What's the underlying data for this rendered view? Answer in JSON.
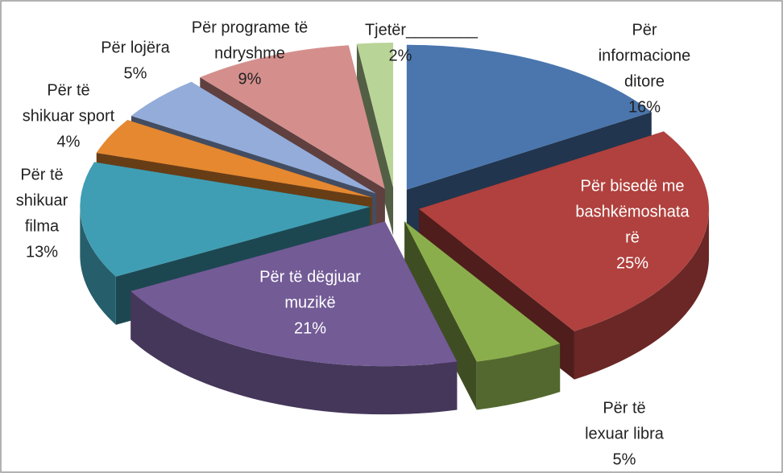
{
  "chart_data": {
    "type": "pie3d",
    "categories": [
      [
        "Për",
        "informacione",
        "ditore"
      ],
      [
        "Për bisedë me",
        "bashkëmoshata",
        "rë"
      ],
      [
        "Për të",
        "lexuar libra"
      ],
      [
        "Për të dëgjuar",
        "muzikë"
      ],
      [
        "Për të",
        "shikuar",
        "filma"
      ],
      [
        "Për të",
        "shikuar sport"
      ],
      [
        "Për lojëra"
      ],
      [
        "Për programe të",
        "ndryshme"
      ],
      [
        "Tjetër________"
      ]
    ],
    "values": [
      16,
      25,
      5,
      21,
      13,
      4,
      5,
      9,
      2
    ],
    "value_labels": [
      "16%",
      "25%",
      "5%",
      "21%",
      "13%",
      "4%",
      "5%",
      "9%",
      "2%"
    ],
    "colors": [
      "#4a76ad",
      "#b0413e",
      "#8bae4c",
      "#735b96",
      "#3f9eb3",
      "#e58830",
      "#94acd9",
      "#d48f8d",
      "#b9d497"
    ]
  }
}
